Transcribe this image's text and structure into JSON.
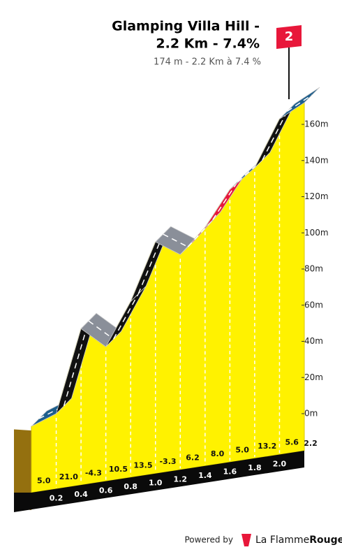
{
  "chart_data": {
    "type": "climb-profile",
    "title": [
      "Glamping Villa Hill -",
      "2.2 Km - 7.4%"
    ],
    "subtitle": "174 m - 2.2 Km à 7.4 %",
    "flag_label": "2",
    "x": [
      0,
      0.2,
      0.4,
      0.6,
      0.8,
      1.0,
      1.2,
      1.4,
      1.6,
      1.8,
      2.0,
      2.2
    ],
    "elevation": [
      -7,
      0,
      47,
      37,
      62,
      95,
      88,
      103,
      124,
      136,
      163,
      172
    ],
    "gradients": {
      "values": [
        5.0,
        21.0,
        -4.3,
        10.5,
        13.5,
        -3.3,
        6.2,
        8.0,
        5.0,
        13.2,
        5.6
      ],
      "value_labels": [
        "5.0",
        "21.0",
        "-4.3",
        "10.5",
        "13.5",
        "-3.3",
        "6.2",
        "8.0",
        "5.0",
        "13.2",
        "5.6"
      ],
      "colors": [
        "#1d5e8c",
        "#111111",
        "#8a8f99",
        "#111111",
        "#111111",
        "#8a8f99",
        "#e8173a",
        "#e8173a",
        "#1d5e8c",
        "#111111",
        "#1d5e8c"
      ]
    },
    "xlim": [
      0,
      2.2
    ],
    "ylim": [
      0,
      160
    ],
    "xticks": [
      0.2,
      0.4,
      0.6,
      0.8,
      {
        "value": 1.0,
        "label": "1.0"
      },
      1.2,
      1.4,
      1.6,
      1.8,
      {
        "value": 2.0,
        "label": "2.0"
      },
      2.2
    ],
    "yticks": [
      {
        "value": 0,
        "label": "0m"
      },
      {
        "value": 20,
        "label": "20m"
      },
      {
        "value": 40,
        "label": "40m"
      },
      {
        "value": 60,
        "label": "60m"
      },
      {
        "value": 80,
        "label": "80m"
      },
      {
        "value": 100,
        "label": "100m"
      },
      {
        "value": 120,
        "label": "120m"
      },
      {
        "value": 140,
        "label": "140m"
      },
      {
        "value": 160,
        "label": "160m"
      }
    ],
    "footer": {
      "powered_by": "Powered by",
      "brand": [
        "La Flamme",
        "Rouge"
      ]
    }
  }
}
